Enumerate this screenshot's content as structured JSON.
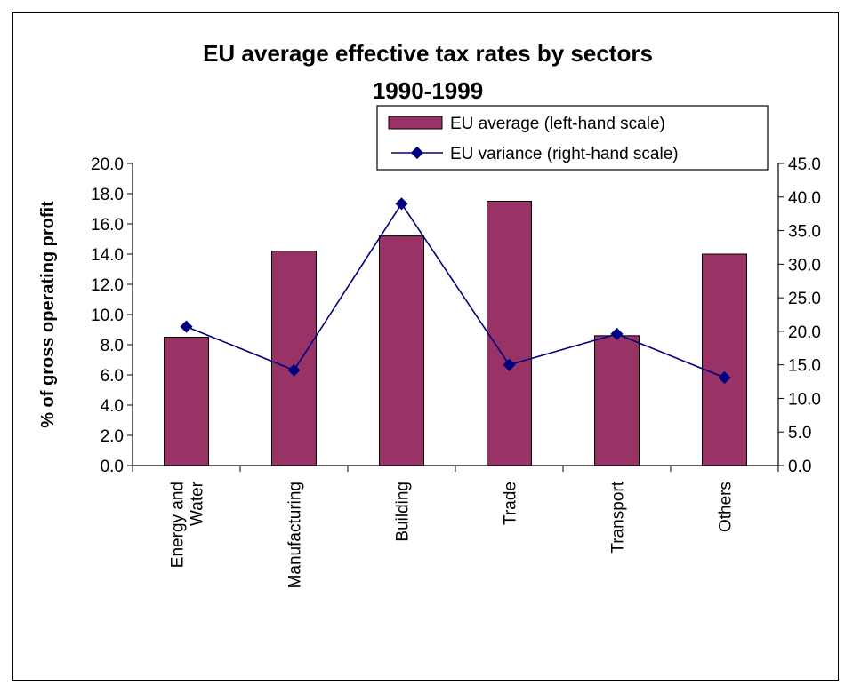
{
  "chart_data": {
    "type": "bar",
    "title": "EU average effective tax rates by sectors",
    "subtitle": "1990-1999",
    "ylabel": "% of gross operating profit",
    "categories": [
      "Energy and Water",
      "Manufacturing",
      "Building",
      "Trade",
      "Transport",
      "Others"
    ],
    "category_lines": [
      [
        "Energy and",
        "Water"
      ],
      [
        "Manufacturing"
      ],
      [
        "Building"
      ],
      [
        "Trade"
      ],
      [
        "Transport"
      ],
      [
        "Others"
      ]
    ],
    "ylim_left": [
      0,
      20
    ],
    "left_ticks": [
      "0.0",
      "2.0",
      "4.0",
      "6.0",
      "8.0",
      "10.0",
      "12.0",
      "14.0",
      "16.0",
      "18.0",
      "20.0"
    ],
    "ylim_right": [
      0,
      45
    ],
    "right_ticks": [
      "0.0",
      "5.0",
      "10.0",
      "15.0",
      "20.0",
      "25.0",
      "30.0",
      "35.0",
      "40.0",
      "45.0"
    ],
    "grid": false,
    "legend_position": "top-right",
    "series": [
      {
        "name": "EU average (left-hand scale)",
        "type": "bar",
        "axis": "left",
        "color": "#993366",
        "values": [
          8.5,
          14.2,
          15.2,
          17.5,
          8.6,
          14.0
        ]
      },
      {
        "name": "EU variance (right-hand scale)",
        "type": "line",
        "axis": "right",
        "color": "#000080",
        "values": [
          20.7,
          14.2,
          39.0,
          15.0,
          19.6,
          13.1
        ]
      }
    ]
  }
}
